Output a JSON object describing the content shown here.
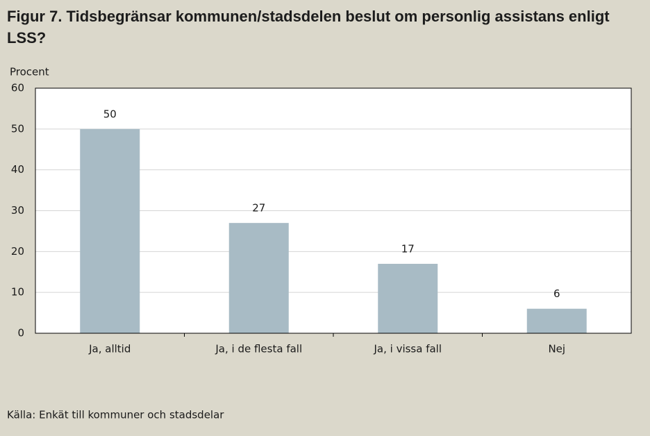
{
  "chart_data": {
    "type": "bar",
    "title": "Figur 7. Tidsbegränsar kommunen/stadsdelen beslut om personlig assistans enligt LSS?",
    "y_label": "Procent",
    "categories": [
      "Ja, alltid",
      "Ja, i de flesta fall",
      "Ja, i vissa fall",
      "Nej"
    ],
    "values": [
      50,
      27,
      17,
      6
    ],
    "color": "#a8bbc5",
    "ylim": [
      0,
      60
    ],
    "yticks": [
      0,
      10,
      20,
      30,
      40,
      50,
      60
    ],
    "grid": true,
    "source": "Källa:  Enkät till kommuner och stadsdelar"
  }
}
